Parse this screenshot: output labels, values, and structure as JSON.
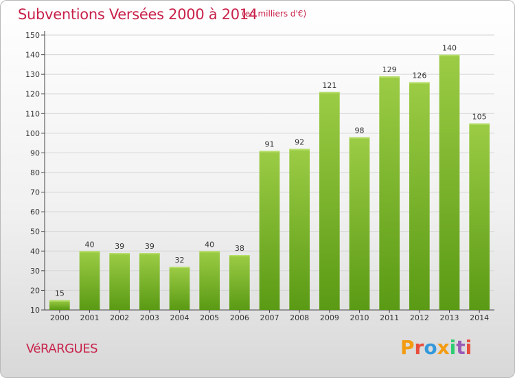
{
  "header": {
    "title": "Subventions Versées 2000 à 2014",
    "subtitle": "(en milliers d'€)"
  },
  "footer": {
    "commune": "VéRARGUES",
    "logo_text": "Proxiti"
  },
  "colors": {
    "accent": "#c8224a",
    "bar_top": "#9ccc45",
    "bar_bottom": "#5a9a14",
    "logo": [
      "#f39c12",
      "#e74c3c",
      "#3498db",
      "#f39c12",
      "#2ecc71",
      "#9b59b6",
      "#e74c3c"
    ]
  },
  "chart_data": {
    "type": "bar",
    "categories": [
      "2000",
      "2001",
      "2002",
      "2003",
      "2004",
      "2005",
      "2006",
      "2007",
      "2008",
      "2009",
      "2010",
      "2011",
      "2012",
      "2013",
      "2014"
    ],
    "values": [
      15,
      40,
      39,
      39,
      32,
      40,
      38,
      91,
      92,
      121,
      98,
      129,
      126,
      140,
      105
    ],
    "ylim": [
      10,
      150
    ],
    "yticks": [
      10,
      20,
      30,
      40,
      50,
      60,
      70,
      80,
      90,
      100,
      110,
      120,
      130,
      140,
      150
    ],
    "grid": true
  }
}
